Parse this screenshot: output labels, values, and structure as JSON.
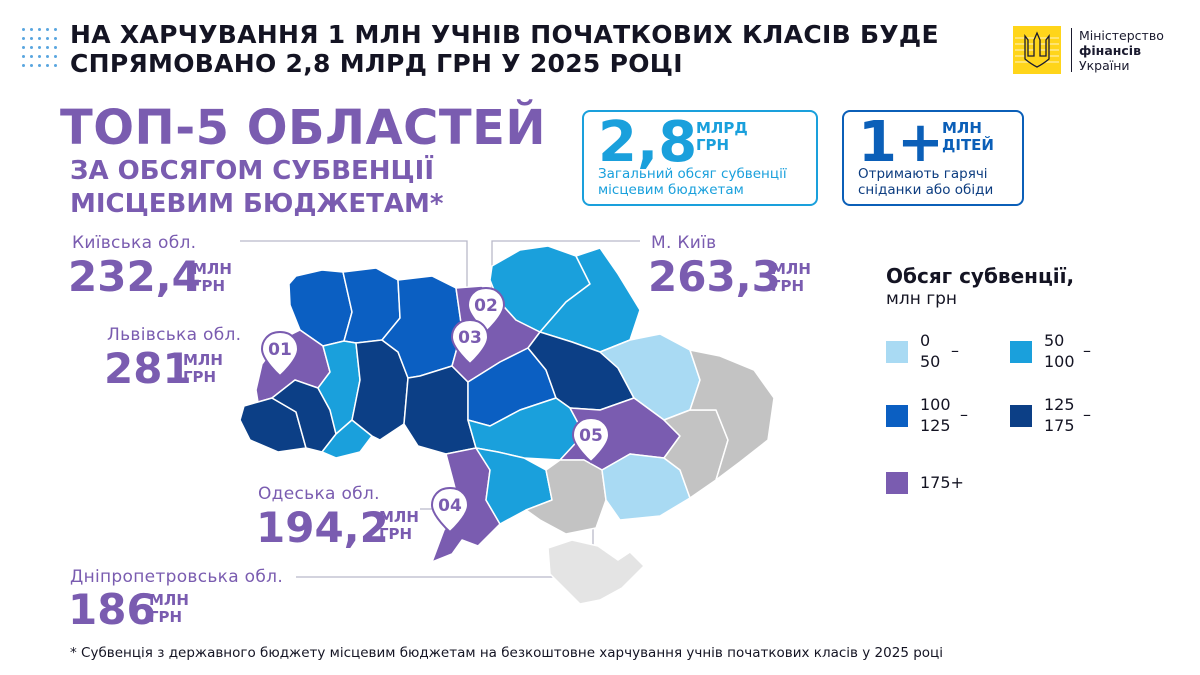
{
  "header": {
    "line1": "НА ХАРЧУВАННЯ 1 МЛН УЧНІВ ПОЧАТКОВИХ КЛАСІВ БУДЕ",
    "line2": "СПРЯМОВАНО 2,8 МЛРД ГРН У 2025 РОЦІ"
  },
  "logo": {
    "line1": "Міністерство",
    "line2": "фінансів",
    "line3": "України",
    "emblem_icon": "trident-icon"
  },
  "title": {
    "main": "ТОП-5 ОБЛАСТЕЙ",
    "sub1": "ЗА ОБСЯГОМ СУБВЕНЦІЇ",
    "sub2": "МІСЦЕВИМ БЮДЖЕТАМ*"
  },
  "stats": {
    "total": {
      "value": "2,8",
      "unit1": "МЛРД",
      "unit2": "ГРН",
      "desc1": "Загальний обсяг субвенції",
      "desc2": "місцевим бюджетам"
    },
    "children": {
      "value": "1+",
      "unit1": "МЛН",
      "unit2": "ДІТЕЙ",
      "desc1": "Отримають гарячі",
      "desc2": "сніданки або обіди"
    }
  },
  "regions": {
    "kyivska": {
      "name": "Київська обл.",
      "value": "232,4",
      "unit1": "МЛН",
      "unit2": "ГРН"
    },
    "lvivska": {
      "name": "Львівська обл.",
      "value": "281",
      "unit1": "МЛН",
      "unit2": "ГРН"
    },
    "kyiv": {
      "name": "М. Київ",
      "value": "263,3",
      "unit1": "МЛН",
      "unit2": "ГРН"
    },
    "odeska": {
      "name": "Одеська обл.",
      "value": "194,2",
      "unit1": "МЛН",
      "unit2": "ГРН"
    },
    "dnipro": {
      "name": "Дніпропетровська обл.",
      "value": "186",
      "unit1": "МЛН",
      "unit2": "ГРН"
    }
  },
  "markers": [
    "01",
    "02",
    "03",
    "04",
    "05"
  ],
  "legend": {
    "title": "Обсяг субвенції,",
    "subtitle": "млн грн",
    "items": [
      {
        "label": "0\n50",
        "dash": "–",
        "color": "#a9daf3"
      },
      {
        "label": "50\n100",
        "dash": "–",
        "color": "#1aa0dc"
      },
      {
        "label": "100\n125",
        "dash": "–",
        "color": "#0b5fc2"
      },
      {
        "label": "125\n175",
        "dash": "–",
        "color": "#0c3f86"
      },
      {
        "label": "175+",
        "dash": "",
        "color": "#7a5cb0"
      }
    ]
  },
  "colors": {
    "purple": "#7a5cb0",
    "grey": "#c3c3c3",
    "light_grey": "#e4e4e4"
  },
  "footnote": "* Субвенція з державного бюджету місцевим бюджетам на безкоштовне харчування учнів початкових класів у 2025 році"
}
